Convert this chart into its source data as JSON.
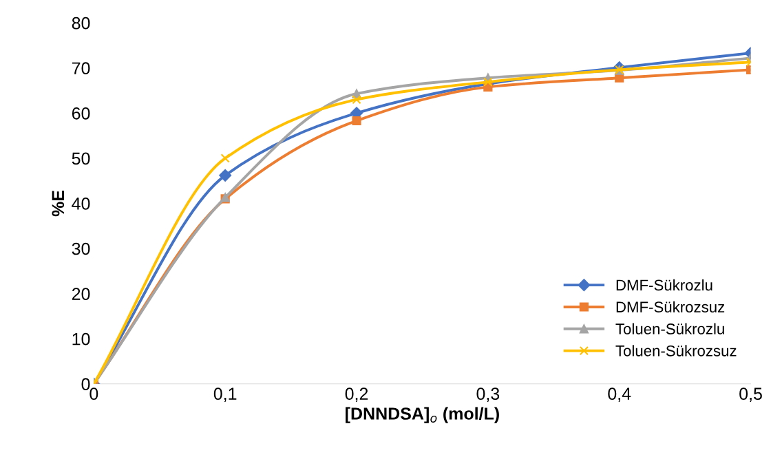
{
  "chart_data": {
    "type": "line",
    "xlabel": "[DNNDSA]$_{o}$ (mol/L)",
    "ylabel": "%E",
    "x": [
      0,
      0.1,
      0.2,
      0.3,
      0.4,
      0.5
    ],
    "series": [
      {
        "name": "DMF-Sükrozlu",
        "color": "#4472c4",
        "marker": "diamond",
        "values": [
          0,
          46.2,
          60,
          66.5,
          70.1,
          73.3
        ]
      },
      {
        "name": "DMF-Sükrozsuz",
        "color": "#ed7d31",
        "marker": "square",
        "values": [
          0,
          41,
          58.3,
          65.8,
          67.8,
          69.6
        ]
      },
      {
        "name": "Toluen-Sükrozlu",
        "color": "#a5a5a5",
        "marker": "triangle",
        "values": [
          0,
          41.3,
          64.3,
          67.8,
          69.5,
          72.2
        ]
      },
      {
        "name": "Toluen-Sükrozsuz",
        "color": "#ffc000",
        "marker": "cross",
        "values": [
          0,
          50,
          63,
          66.9,
          69.6,
          71.3
        ]
      }
    ],
    "xlim": [
      0,
      0.5
    ],
    "ylim": [
      0,
      80
    ],
    "xticks": [
      0,
      {
        "value": 0.1,
        "label": "0,1"
      },
      {
        "value": 0.2,
        "label": "0,2"
      },
      {
        "value": 0.3,
        "label": "0,3"
      },
      {
        "value": 0.4,
        "label": "0,4"
      },
      {
        "value": 0.5,
        "label": "0,5"
      }
    ],
    "yticks": [
      0,
      10,
      20,
      30,
      40,
      50,
      60,
      70,
      80
    ],
    "grid": false,
    "legend": "lower right"
  }
}
